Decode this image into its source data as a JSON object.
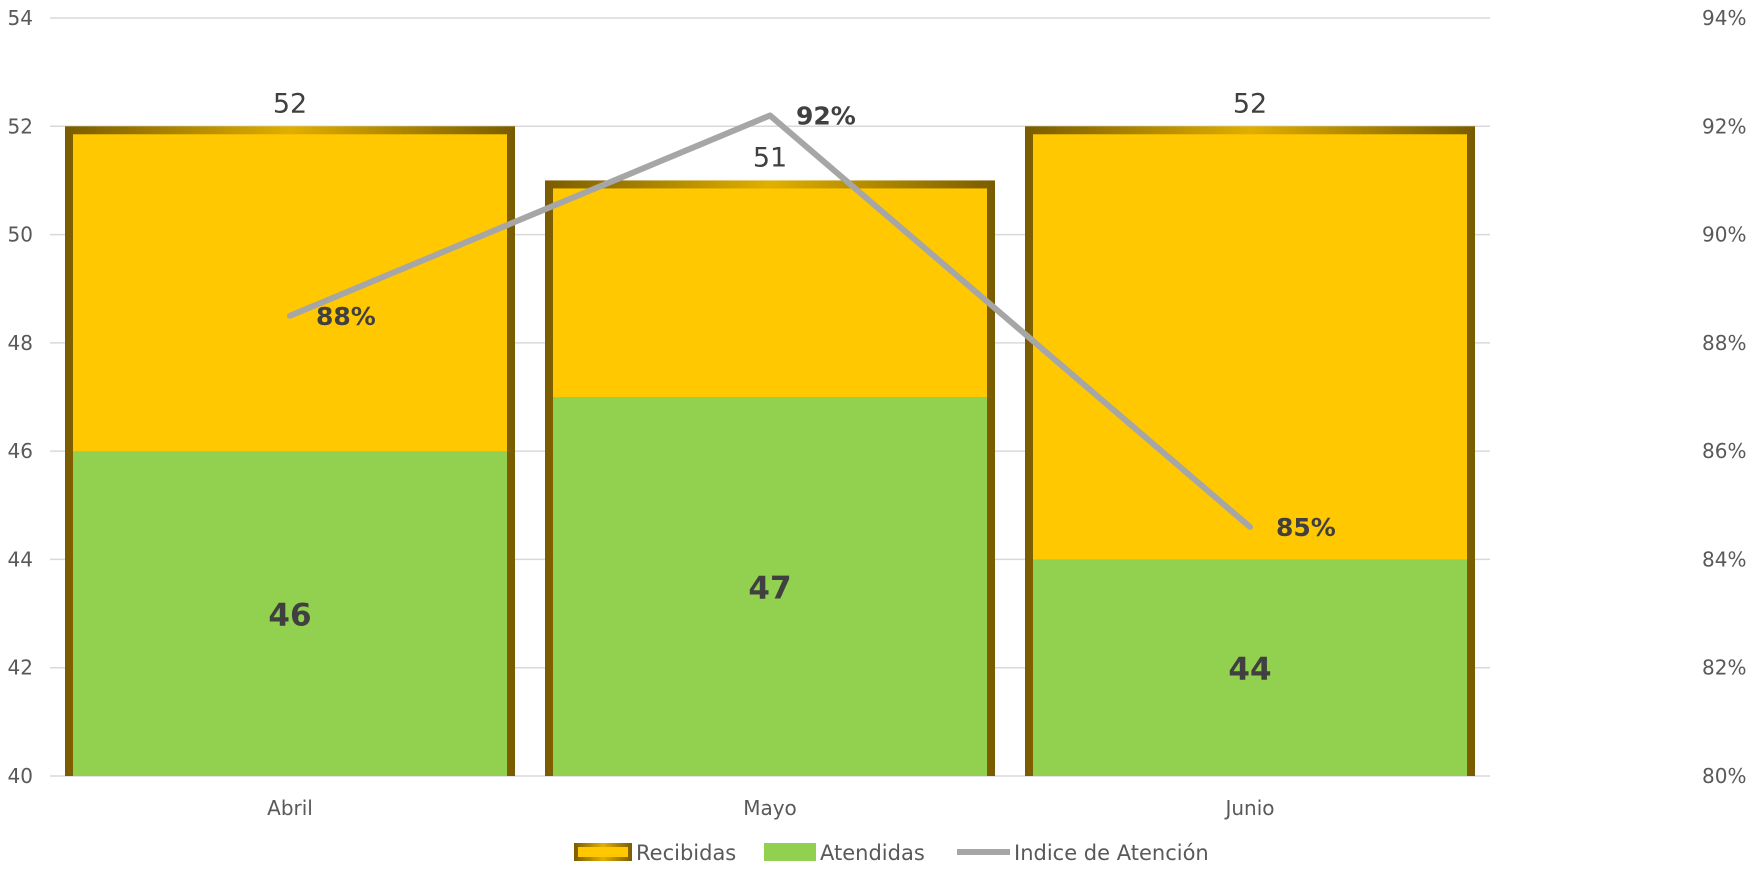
{
  "chart_data": {
    "type": "bar",
    "categories": [
      "Abril",
      "Mayo",
      "Junio"
    ],
    "series": [
      {
        "name": "Recibidas",
        "type": "bar",
        "axis": "left",
        "values": [
          52,
          51,
          52
        ],
        "color": "#FFC800"
      },
      {
        "name": "Atendidas",
        "type": "bar",
        "axis": "left",
        "values": [
          46,
          47,
          44
        ],
        "color": "#92D050"
      },
      {
        "name": "Indice de Atención",
        "type": "line",
        "axis": "right",
        "values": [
          0.885,
          0.922,
          0.846
        ],
        "labels": [
          "88%",
          "92%",
          "85%"
        ],
        "color": "#A6A6A6"
      }
    ],
    "ylim_left": [
      40,
      54
    ],
    "yticks_left": [
      "40",
      "42",
      "44",
      "46",
      "48",
      "50",
      "52",
      "54"
    ],
    "ylim_right": [
      0.8,
      0.94
    ],
    "yticks_right": [
      "80%",
      "82%",
      "84%",
      "86%",
      "88%",
      "90%",
      "92%",
      "94%"
    ],
    "grid": true,
    "legend": "bottom",
    "title": "",
    "xlabel": "",
    "ylabel": ""
  }
}
